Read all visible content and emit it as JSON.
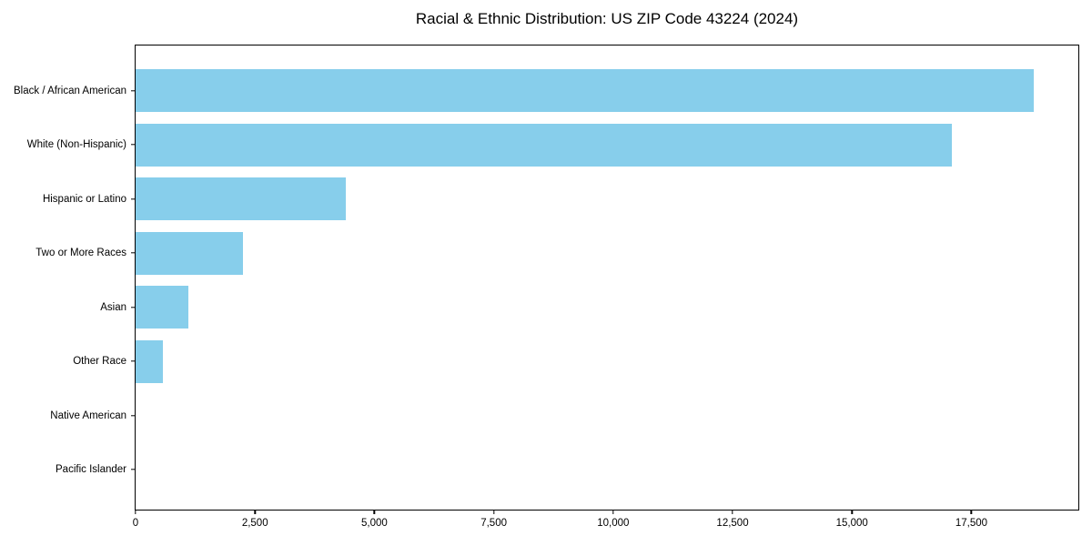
{
  "chart_data": {
    "type": "bar",
    "orientation": "horizontal",
    "title": "Racial & Ethnic Distribution: US ZIP Code 43224 (2024)",
    "categories": [
      "Black / African American",
      "White (Non-Hispanic)",
      "Hispanic or Latino",
      "Two or More Races",
      "Asian",
      "Other Race",
      "Native American",
      "Pacific Islander"
    ],
    "values": [
      18800,
      17100,
      4400,
      2250,
      1100,
      570,
      0,
      0
    ],
    "xlabel": "",
    "ylabel": "",
    "xlim": [
      0,
      19740
    ],
    "x_ticks": [
      0,
      2500,
      5000,
      7500,
      10000,
      12500,
      15000,
      17500
    ],
    "x_tick_labels": [
      "0",
      "2,500",
      "5,000",
      "7,500",
      "10,000",
      "12,500",
      "15,000",
      "17,500"
    ],
    "bar_color": "#87CEEB",
    "background_color": "#ffffff",
    "spine_color": "#000000",
    "text_color": "#000000",
    "grid": false,
    "legend": "none"
  }
}
